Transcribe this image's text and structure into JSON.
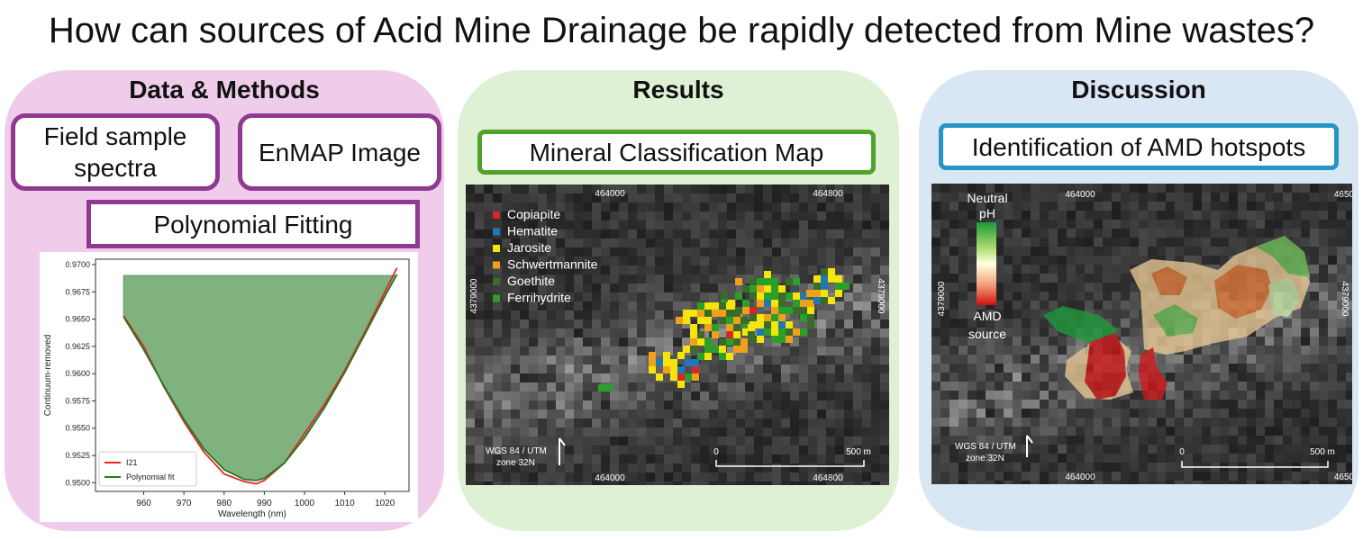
{
  "title": "How can sources of Acid Mine Drainage be rapidly detected from Mine wastes?",
  "panels": {
    "methods": {
      "heading": "Data & Methods",
      "box_field": "Field sample\nspectra",
      "box_enmap": "EnMAP Image",
      "box_poly": "Polynomial Fitting"
    },
    "results": {
      "heading": "Results",
      "box_map": "Mineral Classification Map",
      "legend": [
        {
          "label": "Copiapite",
          "color": "#d62728"
        },
        {
          "label": "Hematite",
          "color": "#1f77b4"
        },
        {
          "label": "Jarosite",
          "color": "#f5e50a"
        },
        {
          "label": "Schwertmannite",
          "color": "#f0a01a"
        },
        {
          "label": "Goethite",
          "color": "#3a6b2a"
        },
        {
          "label": "Ferrihydrite",
          "color": "#2aa02a"
        }
      ],
      "top_ticks": [
        "464000",
        "464800"
      ],
      "bottom_ticks": [
        "464000",
        "464800"
      ],
      "side_tick": "4379000",
      "crs": "WGS 84 / UTM\nzone 32N",
      "scale_start": "0",
      "scale_end": "500 m"
    },
    "discussion": {
      "heading": "Discussion",
      "box_amd": "Identification of AMD hotspots",
      "colorbar_top": "Neutral\npH",
      "colorbar_bottom": "AMD\nsource",
      "top_ticks": [
        "464000",
        "4650"
      ],
      "bottom_ticks": [
        "464000",
        "4650"
      ],
      "side_tick": "4379000",
      "crs": "WGS 84 / UTM\nzone 32N",
      "scale_start": "0",
      "scale_end": "500 m"
    }
  },
  "chart_data": {
    "type": "line",
    "xlabel": "Wavelength (nm)",
    "ylabel": "Continuum-removed",
    "xlim": [
      948,
      1026
    ],
    "ylim": [
      0.9492,
      0.9705
    ],
    "xticks": [
      960,
      970,
      980,
      990,
      1000,
      1010,
      1020
    ],
    "yticks": [
      0.95,
      0.9525,
      0.955,
      0.9575,
      0.96,
      0.9625,
      0.965,
      0.9675,
      0.97
    ],
    "ytick_labels": [
      "0.9500",
      "0.9525",
      "0.9550",
      "0.9575",
      "0.9600",
      "0.9625",
      "0.9650",
      "0.9675",
      "0.9700"
    ],
    "fill_top": 0.969,
    "legend_position": "lower-left",
    "series": [
      {
        "name": "I21",
        "color": "#e8262a",
        "x": [
          955,
          960,
          965,
          970,
          975,
          980,
          985,
          988,
          990,
          995,
          1000,
          1005,
          1010,
          1015,
          1020,
          1023
        ],
        "y": [
          0.9653,
          0.9625,
          0.9588,
          0.9556,
          0.9528,
          0.9508,
          0.9501,
          0.9499,
          0.9502,
          0.9518,
          0.9545,
          0.9572,
          0.9603,
          0.9638,
          0.9675,
          0.9697
        ]
      },
      {
        "name": "Polynomial fit",
        "color": "#1f7a1f",
        "x": [
          955,
          960,
          965,
          970,
          975,
          980,
          985,
          988,
          990,
          995,
          1000,
          1005,
          1010,
          1015,
          1020,
          1023
        ],
        "y": [
          0.9652,
          0.9622,
          0.9589,
          0.9558,
          0.9531,
          0.9512,
          0.9503,
          0.9502,
          0.9504,
          0.9518,
          0.9541,
          0.9569,
          0.9601,
          0.9636,
          0.9671,
          0.9691
        ]
      }
    ]
  }
}
